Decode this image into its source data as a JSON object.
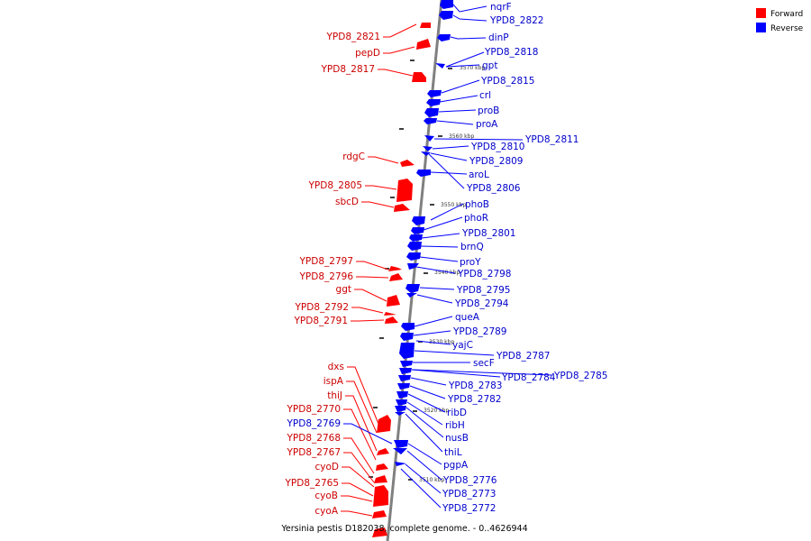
{
  "legend": {
    "forward_label": "Forward",
    "reverse_label": "Reverse",
    "forward_color": "#ff0000",
    "reverse_color": "#0000ff"
  },
  "caption": "Yersinia pestis D182038, complete genome. - 0..4626944",
  "axis": {
    "color": "#808080",
    "tick_labels": [
      "3570 kbp",
      "3560 kbp",
      "3550 kbp",
      "3540 kbp",
      "3530 kbp",
      "3520 kbp",
      "3510 kbp"
    ]
  },
  "forward_genes": [
    "YPD8_2821",
    "pepD",
    "YPD8_2817",
    "rdgC",
    "YPD8_2805",
    "sbcD",
    "YPD8_2797",
    "YPD8_2796",
    "ggt",
    "YPD8_2792",
    "YPD8_2791",
    "dxs",
    "ispA",
    "thiJ",
    "YPD8_2770",
    "YPD8_2768",
    "YPD8_2767",
    "cyoD",
    "YPD8_2765",
    "cyoB",
    "cyoA"
  ],
  "reverse_genes": [
    "nqrF",
    "YPD8_2822",
    "dinP",
    "YPD8_2818",
    "gpt",
    "YPD8_2815",
    "crl",
    "proB",
    "proA",
    "YPD8_2811",
    "YPD8_2810",
    "YPD8_2809",
    "aroL",
    "YPD8_2806",
    "phoB",
    "phoR",
    "YPD8_2801",
    "brnQ",
    "proY",
    "YPD8_2798",
    "YPD8_2795",
    "YPD8_2794",
    "queA",
    "YPD8_2789",
    "yajC",
    "YPD8_2787",
    "secF",
    "YPD8_2784",
    "YPD8_2785",
    "YPD8_2783",
    "YPD8_2782",
    "ribD",
    "ribH",
    "nusB",
    "thiL",
    "pgpA",
    "YPD8_2776",
    "YPD8_2773",
    "YPD8_2772",
    "YPD8_2769"
  ]
}
